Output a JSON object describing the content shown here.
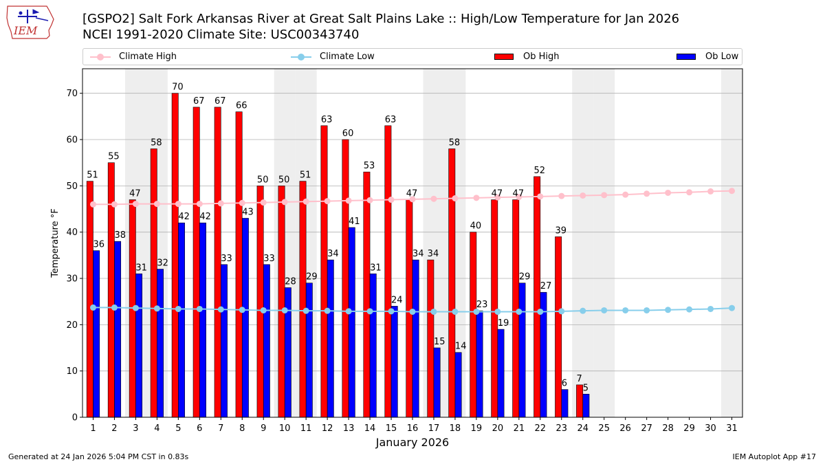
{
  "header": {
    "title_line1": "[GSPO2] Salt Fork Arkansas River at Great Salt Plains Lake :: High/Low Temperature for Jan 2026",
    "title_line2": "NCEI 1991-2020 Climate Site: USC00343740"
  },
  "logo": {
    "text": "IEM"
  },
  "footer": {
    "generated": "Generated at 24 Jan 2026 5:04 PM CST in 0.83s",
    "app": "IEM Autoplot App #17"
  },
  "colors": {
    "ob_high": "#ff0000",
    "ob_low": "#0000ff",
    "climate_high": "#ffc0cb",
    "climate_low": "#87ceeb",
    "weekend_band": "#eeeeee",
    "grid": "#b0b0b0"
  },
  "chart_data": {
    "type": "bar",
    "xlabel": "January 2026",
    "ylabel": "Temperature °F",
    "ylim": [
      0,
      75
    ],
    "yticks": [
      0,
      10,
      20,
      30,
      40,
      50,
      60,
      70
    ],
    "grid": "horizontal",
    "legend_placement": "top",
    "categories": [
      1,
      2,
      3,
      4,
      5,
      6,
      7,
      8,
      9,
      10,
      11,
      12,
      13,
      14,
      15,
      16,
      17,
      18,
      19,
      20,
      21,
      22,
      23,
      24,
      25,
      26,
      27,
      28,
      29,
      30,
      31
    ],
    "weekend_days": [
      3,
      4,
      10,
      11,
      17,
      18,
      24,
      25,
      31
    ],
    "series": [
      {
        "name": "Climate High",
        "kind": "line",
        "values": [
          46.0,
          46.0,
          46.1,
          46.1,
          46.1,
          46.1,
          46.2,
          46.3,
          46.4,
          46.5,
          46.6,
          46.7,
          46.8,
          46.9,
          47.0,
          47.1,
          47.2,
          47.3,
          47.4,
          47.5,
          47.6,
          47.7,
          47.8,
          47.9,
          48.0,
          48.1,
          48.3,
          48.5,
          48.6,
          48.8,
          48.9
        ]
      },
      {
        "name": "Climate Low",
        "kind": "line",
        "values": [
          23.7,
          23.7,
          23.6,
          23.5,
          23.4,
          23.4,
          23.3,
          23.2,
          23.1,
          23.1,
          23.0,
          23.0,
          22.9,
          22.9,
          22.9,
          22.8,
          22.8,
          22.8,
          22.8,
          22.8,
          22.8,
          22.8,
          22.9,
          23.0,
          23.1,
          23.1,
          23.1,
          23.2,
          23.3,
          23.4,
          23.6
        ]
      },
      {
        "name": "Ob High",
        "kind": "bar",
        "values": [
          51,
          55,
          47,
          58,
          70,
          67,
          67,
          66,
          50,
          50,
          51,
          63,
          60,
          53,
          63,
          47,
          34,
          58,
          40,
          47,
          47,
          52,
          39,
          7,
          null,
          null,
          null,
          null,
          null,
          null,
          null
        ]
      },
      {
        "name": "Ob Low",
        "kind": "bar",
        "values": [
          36,
          38,
          31,
          32,
          42,
          42,
          33,
          43,
          33,
          28,
          29,
          34,
          41,
          31,
          24,
          34,
          15,
          14,
          23,
          19,
          29,
          27,
          6,
          5,
          null,
          null,
          null,
          null,
          null,
          null,
          null
        ]
      }
    ]
  }
}
